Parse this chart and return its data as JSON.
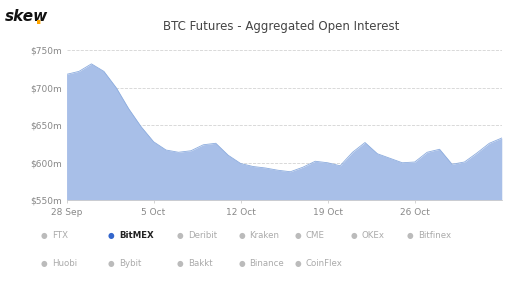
{
  "title": "BTC Futures - Aggregated Open Interest",
  "y_min": 550,
  "y_max": 760,
  "yticks": [
    550,
    600,
    650,
    700,
    750
  ],
  "ytick_labels": [
    "$550m",
    "$600m",
    "$650m",
    "$700m",
    "$750m"
  ],
  "xtick_labels": [
    "28 Sep",
    "5 Oct",
    "12 Oct",
    "19 Oct",
    "26 Oct"
  ],
  "area_color": "#a8bfe8",
  "line_color": "#8cacde",
  "background_color": "#ffffff",
  "grid_color": "#c8c8c8",
  "legend_items": [
    {
      "label": "FTX",
      "color": "#bbbbbb",
      "bold": false,
      "row": 0,
      "col": 0
    },
    {
      "label": "BitMEX",
      "color": "#3366cc",
      "bold": true,
      "row": 0,
      "col": 1
    },
    {
      "label": "Deribit",
      "color": "#bbbbbb",
      "bold": false,
      "row": 0,
      "col": 2
    },
    {
      "label": "Kraken",
      "color": "#bbbbbb",
      "bold": false,
      "row": 0,
      "col": 3
    },
    {
      "label": "CME",
      "color": "#bbbbbb",
      "bold": false,
      "row": 0,
      "col": 4
    },
    {
      "label": "OKEx",
      "color": "#bbbbbb",
      "bold": false,
      "row": 0,
      "col": 5
    },
    {
      "label": "Bitfinex",
      "color": "#bbbbbb",
      "bold": false,
      "row": 0,
      "col": 6
    },
    {
      "label": "Huobi",
      "color": "#bbbbbb",
      "bold": false,
      "row": 1,
      "col": 0
    },
    {
      "label": "Bybit",
      "color": "#bbbbbb",
      "bold": false,
      "row": 1,
      "col": 1
    },
    {
      "label": "Bakkt",
      "color": "#bbbbbb",
      "bold": false,
      "row": 1,
      "col": 2
    },
    {
      "label": "Binance",
      "color": "#bbbbbb",
      "bold": false,
      "row": 1,
      "col": 3
    },
    {
      "label": "CoinFlex",
      "color": "#bbbbbb",
      "bold": false,
      "row": 1,
      "col": 4
    }
  ],
  "y_values": [
    718,
    722,
    732,
    722,
    700,
    672,
    648,
    628,
    617,
    614,
    616,
    624,
    626,
    610,
    599,
    595,
    593,
    590,
    588,
    594,
    602,
    600,
    596,
    614,
    627,
    612,
    606,
    600,
    601,
    614,
    618,
    598,
    601,
    613,
    626,
    633
  ],
  "x_tick_positions": [
    0,
    7,
    14,
    21,
    28
  ]
}
